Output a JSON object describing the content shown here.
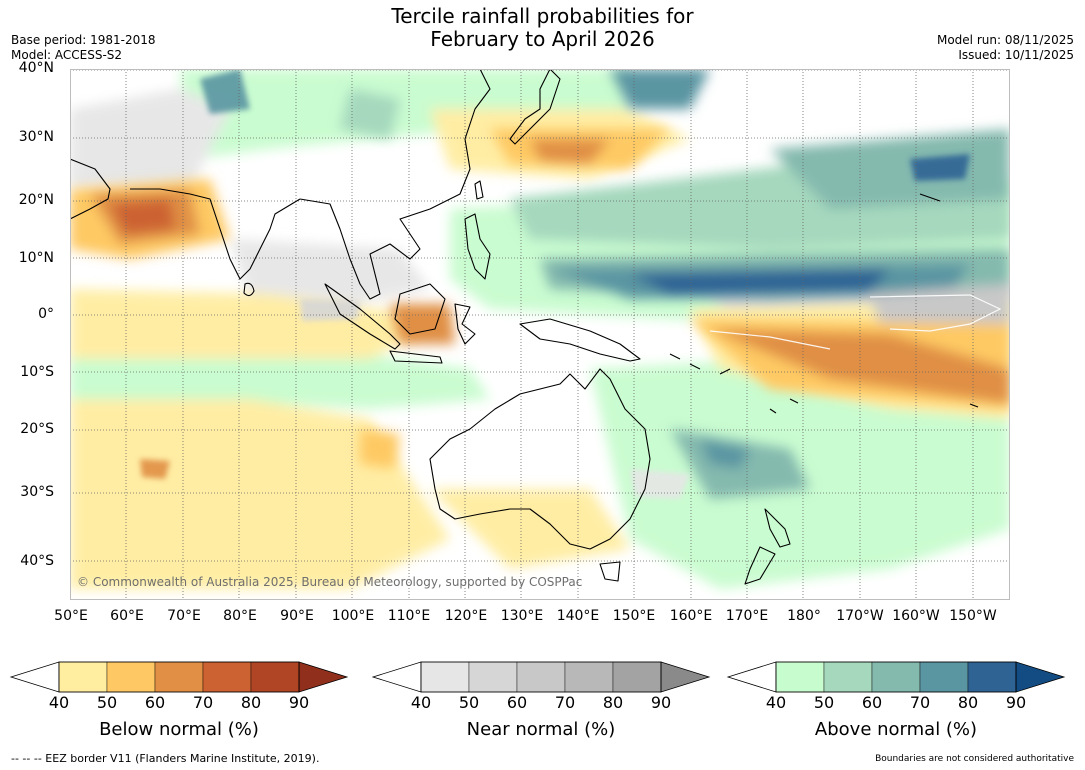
{
  "title": {
    "line1": "Tercile rainfall probabilities for",
    "line2": "February to April 2026"
  },
  "meta": {
    "base_period": "Base period: 1981-2018",
    "model": "Model: ACCESS-S2",
    "model_run": "Model run: 08/11/2025",
    "issued": "Issued: 10/11/2025"
  },
  "map": {
    "lat_labels": [
      "40°N",
      "30°N",
      "20°N",
      "10°N",
      "0°",
      "10°S",
      "20°S",
      "30°S",
      "40°S"
    ],
    "lon_labels": [
      "50°E",
      "60°E",
      "70°E",
      "80°E",
      "90°E",
      "100°E",
      "110°E",
      "120°E",
      "130°E",
      "140°E",
      "150°E",
      "160°E",
      "170°E",
      "180°",
      "170°W",
      "160°W",
      "150°W"
    ],
    "copyright": "© Commonwealth of Australia 2025, Bureau of Meteorology, supported by COSPPac",
    "ocean_color": "#ffffff",
    "coast_color": "#000000"
  },
  "legends": {
    "below": {
      "label": "Below normal (%)",
      "ticks": [
        "40",
        "50",
        "60",
        "70",
        "80",
        "90"
      ],
      "colors": [
        "#ffeda0",
        "#fec964",
        "#e08f45",
        "#cc6231",
        "#b04525",
        "#90301c"
      ]
    },
    "near": {
      "label": "Near normal (%)",
      "ticks": [
        "40",
        "50",
        "60",
        "70",
        "80",
        "90"
      ],
      "colors": [
        "#e6e6e6",
        "#d6d6d6",
        "#c8c8c8",
        "#b8b8b8",
        "#a3a3a3",
        "#8a8a8a"
      ]
    },
    "above": {
      "label": "Above normal (%)",
      "ticks": [
        "40",
        "50",
        "60",
        "70",
        "80",
        "90"
      ],
      "colors": [
        "#c7fcce",
        "#a5d8bd",
        "#84b9ae",
        "#5a95a2",
        "#2e6394",
        "#134c83"
      ]
    }
  },
  "footer": {
    "eez": "--  --  -- EEZ border V11 (Flanders Marine Institute, 2019).",
    "disclaimer": "Boundaries are not considered authoritative"
  }
}
